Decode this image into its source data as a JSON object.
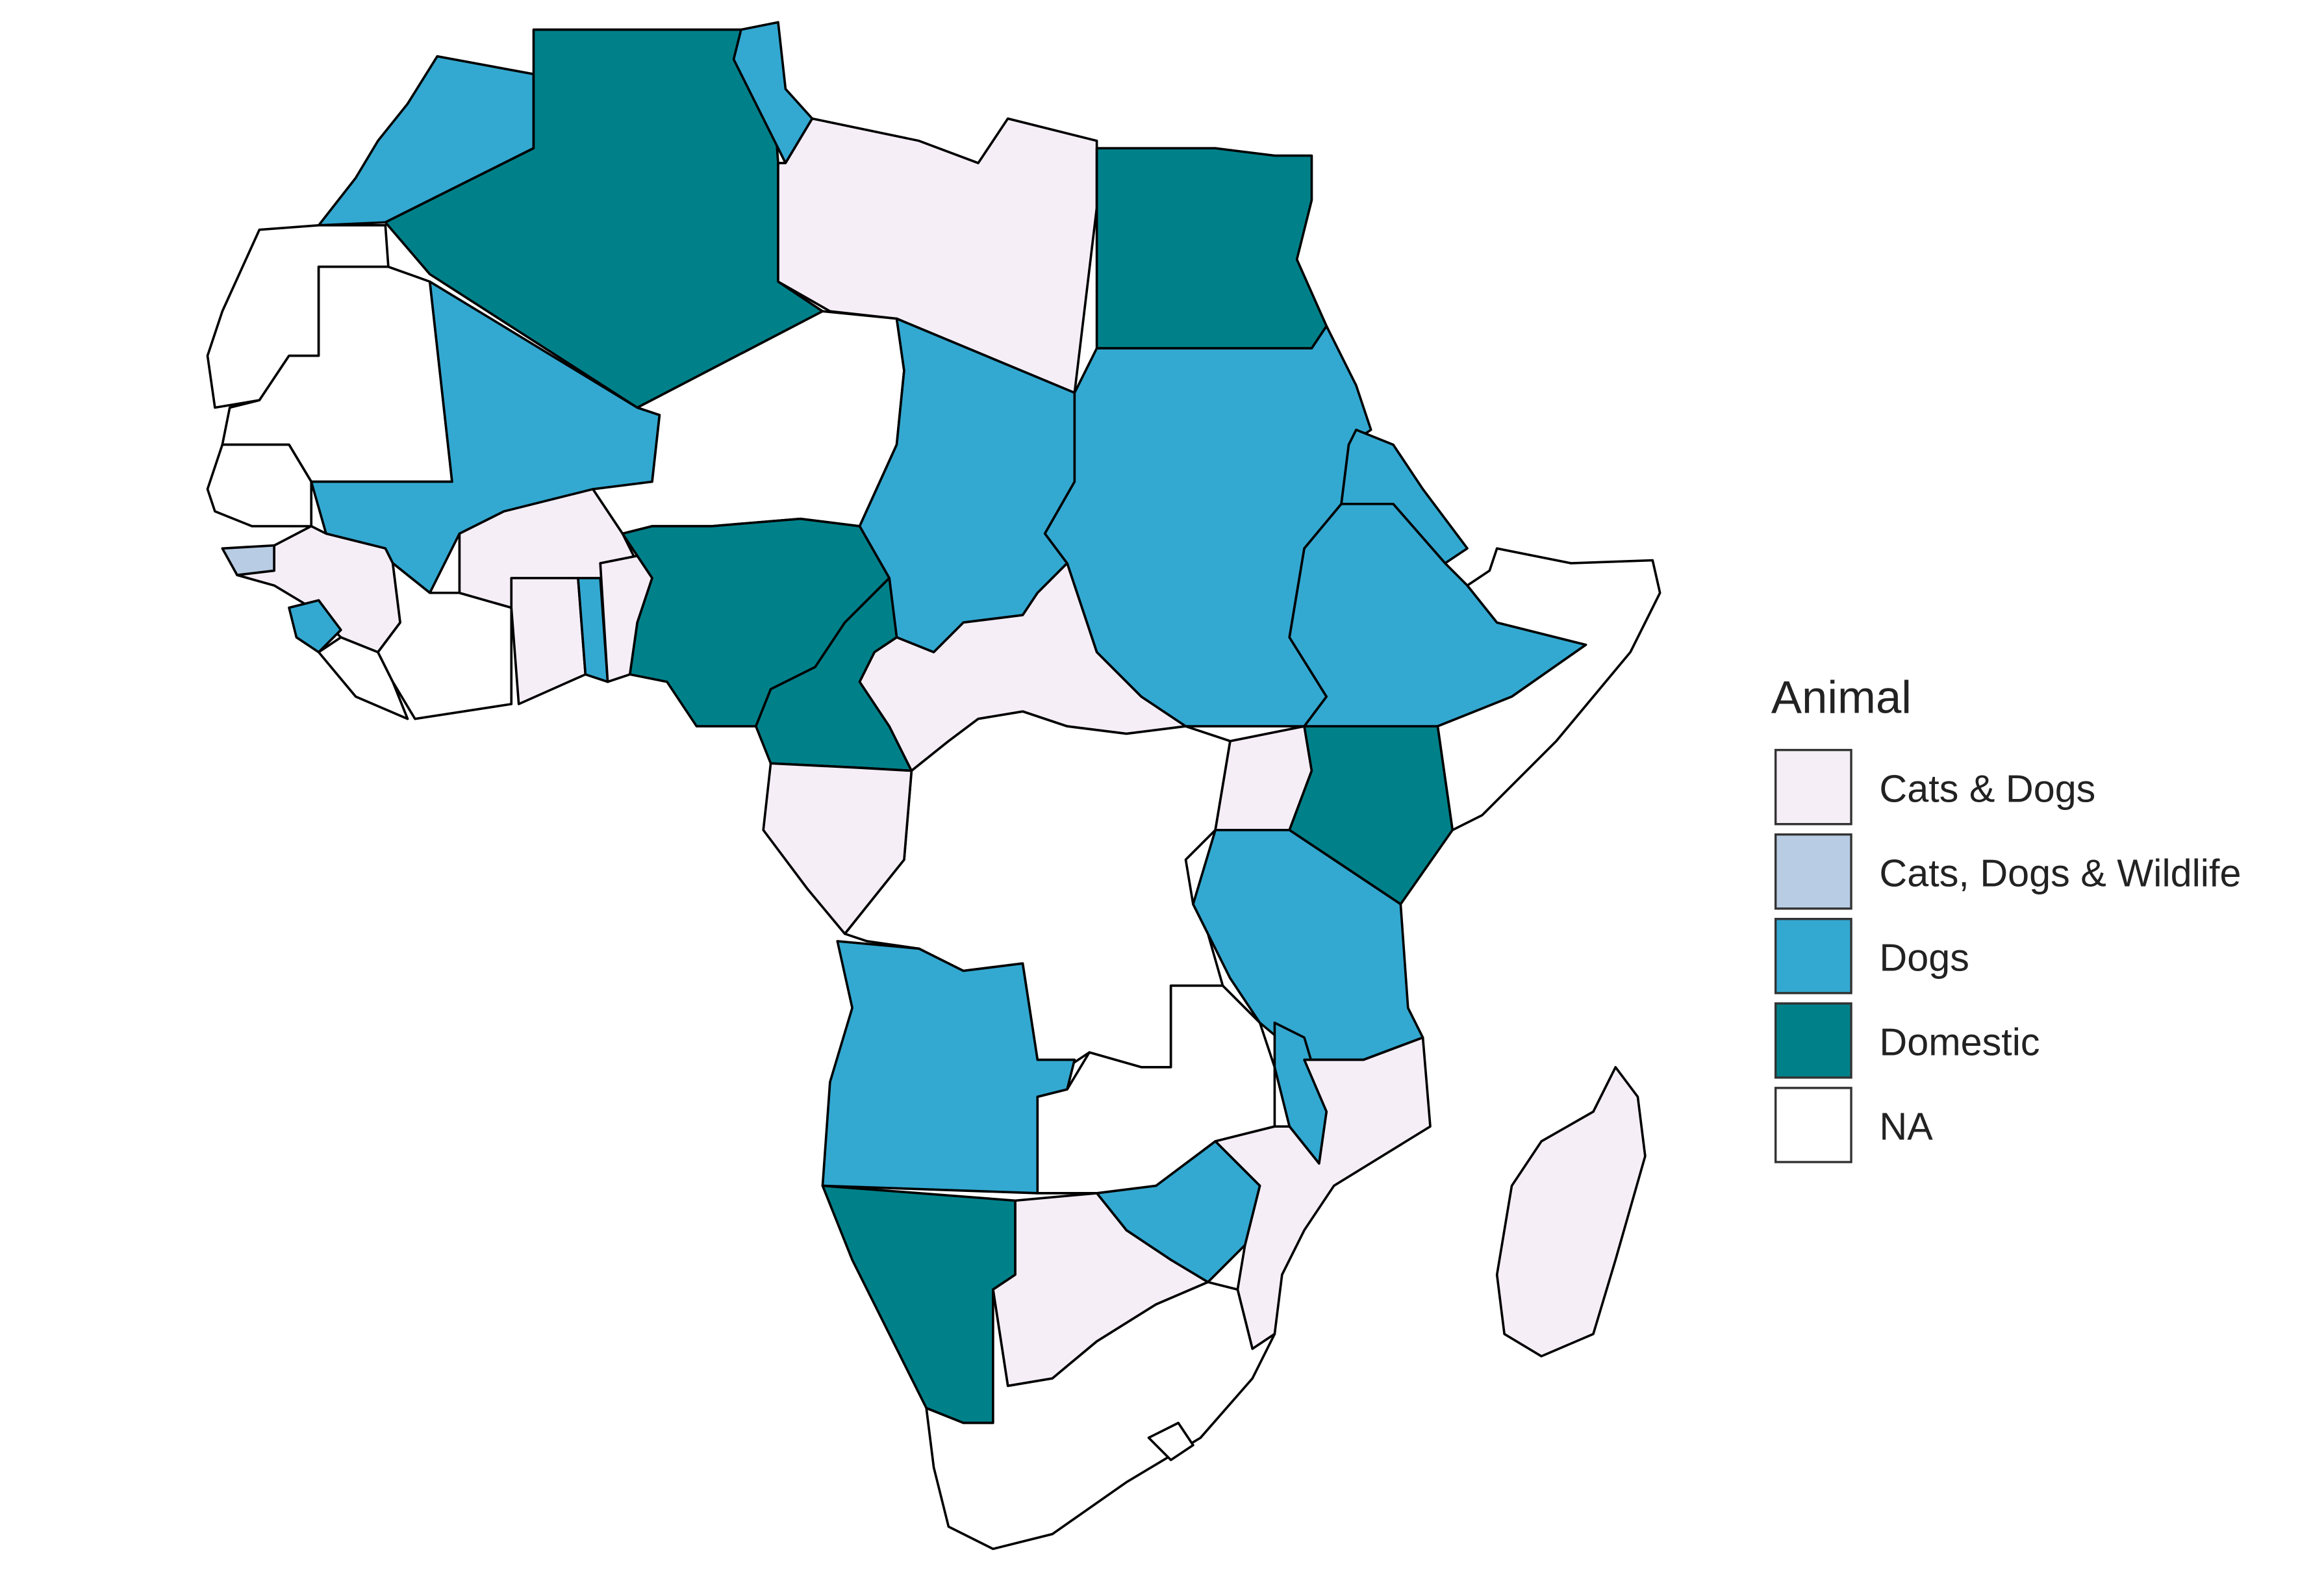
{
  "legend": {
    "title": "Animal",
    "items": [
      {
        "label": "Cats & Dogs",
        "color": "#f5eef7"
      },
      {
        "label": "Cats, Dogs & Wildlife",
        "color": "#b8cce4"
      },
      {
        "label": "Dogs",
        "color": "#33a9d1"
      },
      {
        "label": "Domestic",
        "color": "#00818a"
      },
      {
        "label": "NA",
        "color": "#ffffff"
      }
    ]
  }
}
